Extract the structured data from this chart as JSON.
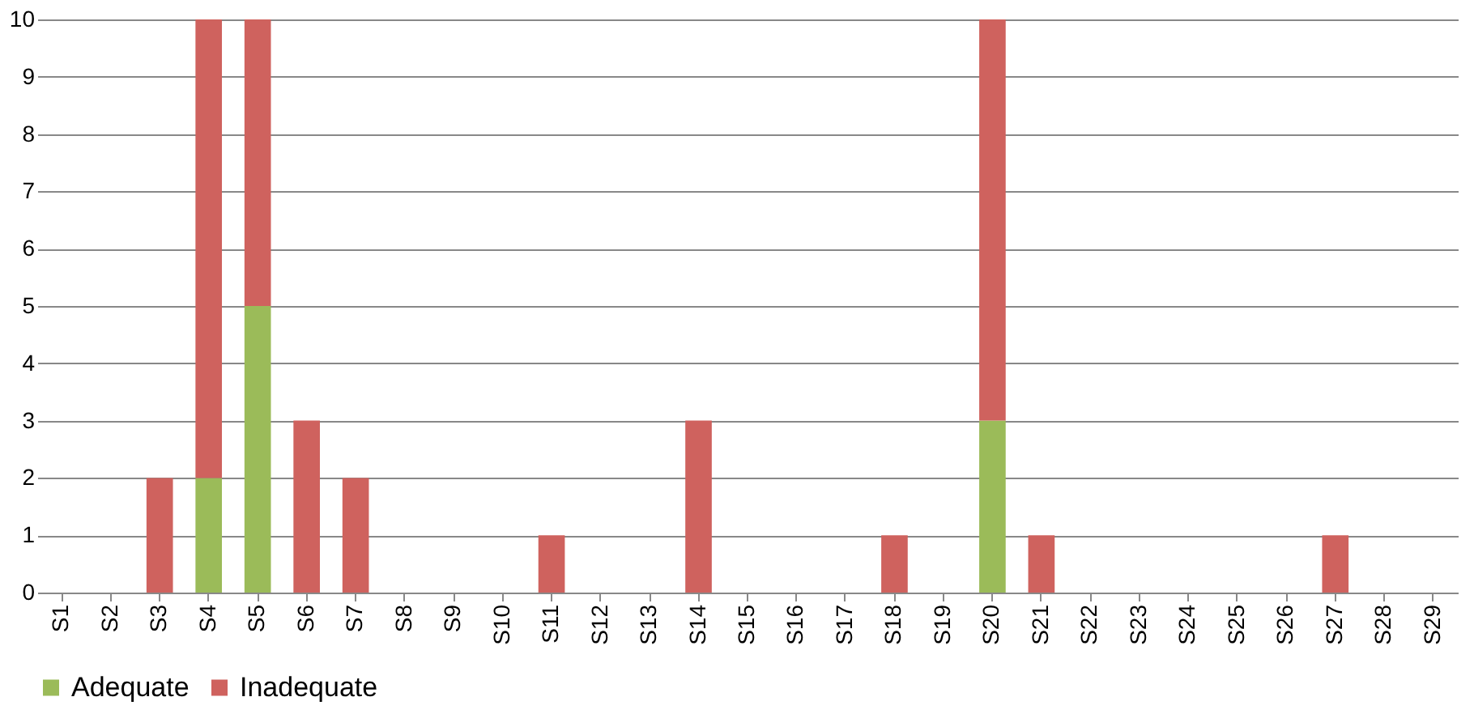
{
  "chart_data": {
    "type": "bar",
    "stacked": true,
    "categories": [
      "S1",
      "S2",
      "S3",
      "S4",
      "S5",
      "S6",
      "S7",
      "S8",
      "S9",
      "S10",
      "S11",
      "S12",
      "S13",
      "S14",
      "S15",
      "S16",
      "S17",
      "S18",
      "S19",
      "S20",
      "S21",
      "S22",
      "S23",
      "S24",
      "S25",
      "S26",
      "S27",
      "S28",
      "S29"
    ],
    "series": [
      {
        "name": "Adequate",
        "color": "#9bbb59",
        "values": [
          0,
          0,
          0,
          2,
          5,
          0,
          0,
          0,
          0,
          0,
          0,
          0,
          0,
          0,
          0,
          0,
          0,
          0,
          0,
          3,
          0,
          0,
          0,
          0,
          0,
          0,
          0,
          0,
          0
        ]
      },
      {
        "name": "Inadequate",
        "color": "#cf625e",
        "values": [
          0,
          0,
          2,
          8,
          5,
          3,
          2,
          0,
          0,
          0,
          1,
          0,
          0,
          3,
          0,
          0,
          0,
          1,
          0,
          7,
          1,
          0,
          0,
          0,
          0,
          0,
          1,
          0,
          0
        ]
      }
    ],
    "ylim": [
      0,
      10
    ],
    "yticks": [
      0,
      1,
      2,
      3,
      4,
      5,
      6,
      7,
      8,
      9,
      10
    ],
    "grid": "y",
    "legend": "bottom"
  }
}
